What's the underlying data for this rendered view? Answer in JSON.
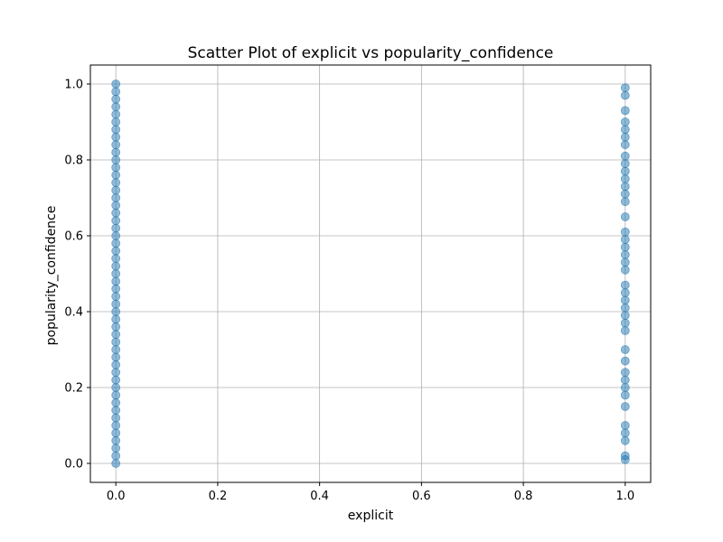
{
  "chart_data": {
    "type": "scatter",
    "title": "Scatter Plot of explicit vs popularity_confidence",
    "xlabel": "explicit",
    "ylabel": "popularity_confidence",
    "xlim": [
      -0.05,
      1.05
    ],
    "ylim": [
      -0.05,
      1.05
    ],
    "xticks": [
      "0.0",
      "0.2",
      "0.4",
      "0.6",
      "0.8",
      "1.0"
    ],
    "yticks": [
      "0.0",
      "0.2",
      "0.4",
      "0.6",
      "0.8",
      "1.0"
    ],
    "grid": true,
    "point_color": "#1f77b4",
    "points": [
      {
        "x": 0,
        "y": 0.0
      },
      {
        "x": 0,
        "y": 0.02
      },
      {
        "x": 0,
        "y": 0.04
      },
      {
        "x": 0,
        "y": 0.06
      },
      {
        "x": 0,
        "y": 0.08
      },
      {
        "x": 0,
        "y": 0.1
      },
      {
        "x": 0,
        "y": 0.12
      },
      {
        "x": 0,
        "y": 0.14
      },
      {
        "x": 0,
        "y": 0.16
      },
      {
        "x": 0,
        "y": 0.18
      },
      {
        "x": 0,
        "y": 0.2
      },
      {
        "x": 0,
        "y": 0.22
      },
      {
        "x": 0,
        "y": 0.24
      },
      {
        "x": 0,
        "y": 0.26
      },
      {
        "x": 0,
        "y": 0.28
      },
      {
        "x": 0,
        "y": 0.3
      },
      {
        "x": 0,
        "y": 0.32
      },
      {
        "x": 0,
        "y": 0.34
      },
      {
        "x": 0,
        "y": 0.36
      },
      {
        "x": 0,
        "y": 0.38
      },
      {
        "x": 0,
        "y": 0.4
      },
      {
        "x": 0,
        "y": 0.42
      },
      {
        "x": 0,
        "y": 0.44
      },
      {
        "x": 0,
        "y": 0.46
      },
      {
        "x": 0,
        "y": 0.48
      },
      {
        "x": 0,
        "y": 0.5
      },
      {
        "x": 0,
        "y": 0.52
      },
      {
        "x": 0,
        "y": 0.54
      },
      {
        "x": 0,
        "y": 0.56
      },
      {
        "x": 0,
        "y": 0.58
      },
      {
        "x": 0,
        "y": 0.6
      },
      {
        "x": 0,
        "y": 0.62
      },
      {
        "x": 0,
        "y": 0.64
      },
      {
        "x": 0,
        "y": 0.66
      },
      {
        "x": 0,
        "y": 0.68
      },
      {
        "x": 0,
        "y": 0.7
      },
      {
        "x": 0,
        "y": 0.72
      },
      {
        "x": 0,
        "y": 0.74
      },
      {
        "x": 0,
        "y": 0.76
      },
      {
        "x": 0,
        "y": 0.78
      },
      {
        "x": 0,
        "y": 0.8
      },
      {
        "x": 0,
        "y": 0.82
      },
      {
        "x": 0,
        "y": 0.84
      },
      {
        "x": 0,
        "y": 0.86
      },
      {
        "x": 0,
        "y": 0.88
      },
      {
        "x": 0,
        "y": 0.9
      },
      {
        "x": 0,
        "y": 0.92
      },
      {
        "x": 0,
        "y": 0.94
      },
      {
        "x": 0,
        "y": 0.96
      },
      {
        "x": 0,
        "y": 0.98
      },
      {
        "x": 0,
        "y": 1.0
      },
      {
        "x": 1,
        "y": 0.01
      },
      {
        "x": 1,
        "y": 0.02
      },
      {
        "x": 1,
        "y": 0.06
      },
      {
        "x": 1,
        "y": 0.08
      },
      {
        "x": 1,
        "y": 0.1
      },
      {
        "x": 1,
        "y": 0.15
      },
      {
        "x": 1,
        "y": 0.18
      },
      {
        "x": 1,
        "y": 0.2
      },
      {
        "x": 1,
        "y": 0.22
      },
      {
        "x": 1,
        "y": 0.24
      },
      {
        "x": 1,
        "y": 0.27
      },
      {
        "x": 1,
        "y": 0.3
      },
      {
        "x": 1,
        "y": 0.35
      },
      {
        "x": 1,
        "y": 0.37
      },
      {
        "x": 1,
        "y": 0.39
      },
      {
        "x": 1,
        "y": 0.41
      },
      {
        "x": 1,
        "y": 0.43
      },
      {
        "x": 1,
        "y": 0.45
      },
      {
        "x": 1,
        "y": 0.47
      },
      {
        "x": 1,
        "y": 0.51
      },
      {
        "x": 1,
        "y": 0.53
      },
      {
        "x": 1,
        "y": 0.55
      },
      {
        "x": 1,
        "y": 0.57
      },
      {
        "x": 1,
        "y": 0.59
      },
      {
        "x": 1,
        "y": 0.61
      },
      {
        "x": 1,
        "y": 0.65
      },
      {
        "x": 1,
        "y": 0.69
      },
      {
        "x": 1,
        "y": 0.71
      },
      {
        "x": 1,
        "y": 0.73
      },
      {
        "x": 1,
        "y": 0.75
      },
      {
        "x": 1,
        "y": 0.77
      },
      {
        "x": 1,
        "y": 0.79
      },
      {
        "x": 1,
        "y": 0.81
      },
      {
        "x": 1,
        "y": 0.84
      },
      {
        "x": 1,
        "y": 0.86
      },
      {
        "x": 1,
        "y": 0.88
      },
      {
        "x": 1,
        "y": 0.9
      },
      {
        "x": 1,
        "y": 0.93
      },
      {
        "x": 1,
        "y": 0.97
      },
      {
        "x": 1,
        "y": 0.99
      }
    ]
  }
}
